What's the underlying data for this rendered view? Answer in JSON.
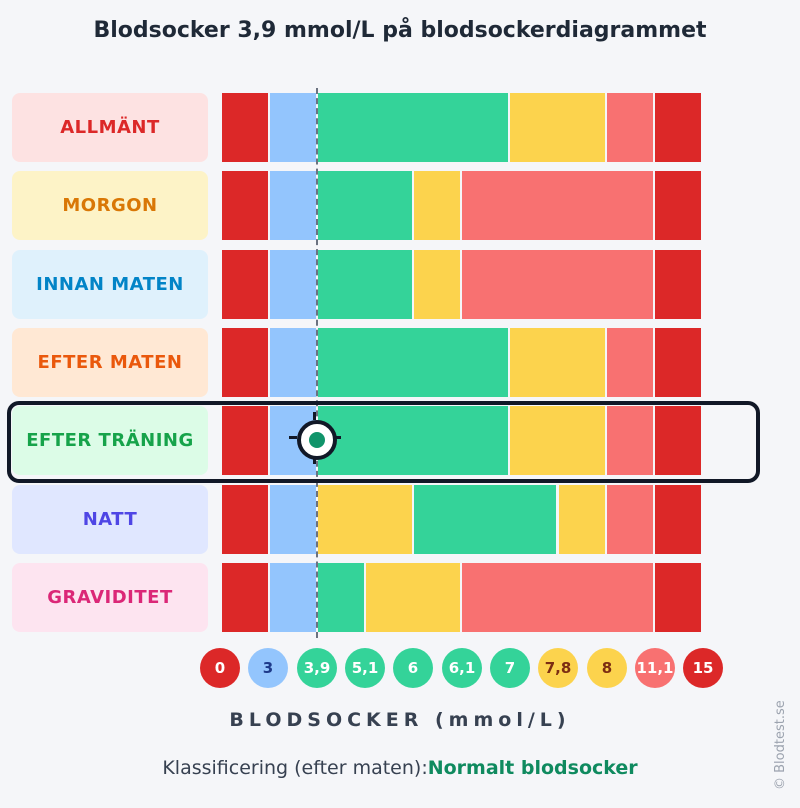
{
  "title": "Blodsocker 3,9 mmol/L på blodsockerdiagrammet",
  "colors": {
    "red": "#dc2828",
    "blue": "#93c5fd",
    "green": "#34d399",
    "yellow": "#fcd34d",
    "salmon": "#f87171",
    "marker": "#10946a"
  },
  "chart_data": {
    "type": "table",
    "xlabel": "BLODSOCKER (mmol/L)",
    "x_ticks": [
      "0",
      "3",
      "3,9",
      "5,1",
      "6",
      "6,1",
      "7",
      "7,8",
      "8",
      "11,1",
      "15"
    ],
    "x_tick_colors": [
      "red",
      "blue",
      "green",
      "green",
      "green",
      "green",
      "green",
      "yellow",
      "yellow",
      "salmon",
      "red"
    ],
    "marker_value": 3.9,
    "highlighted_row": "EFTER TRÄNING",
    "rows": [
      {
        "label": "ALLMÄNT",
        "label_color": "#dc2828",
        "label_bg": "#fde2e2",
        "bands": [
          "red",
          "blue",
          "green",
          "green",
          "green",
          "green",
          "yellow",
          "yellow",
          "salmon",
          "red"
        ]
      },
      {
        "label": "MORGON",
        "label_color": "#d97706",
        "label_bg": "#fdf3c7",
        "bands": [
          "red",
          "blue",
          "green",
          "green",
          "yellow",
          "salmon",
          "salmon",
          "salmon",
          "salmon",
          "red"
        ]
      },
      {
        "label": "INNAN MATEN",
        "label_color": "#0284c7",
        "label_bg": "#dff1fc",
        "bands": [
          "red",
          "blue",
          "green",
          "green",
          "yellow",
          "salmon",
          "salmon",
          "salmon",
          "salmon",
          "red"
        ]
      },
      {
        "label": "EFTER MATEN",
        "label_color": "#ea580c",
        "label_bg": "#ffe8d4",
        "bands": [
          "red",
          "blue",
          "green",
          "green",
          "green",
          "green",
          "yellow",
          "yellow",
          "salmon",
          "red"
        ]
      },
      {
        "label": "EFTER TRÄNING",
        "label_color": "#16a34a",
        "label_bg": "#dcfce7",
        "bands": [
          "red",
          "blue",
          "green",
          "green",
          "green",
          "green",
          "yellow",
          "yellow",
          "salmon",
          "red"
        ]
      },
      {
        "label": "NATT",
        "label_color": "#4f46e5",
        "label_bg": "#e0e7ff",
        "bands": [
          "red",
          "blue",
          "yellow",
          "yellow",
          "green",
          "green",
          "green",
          "yellow",
          "salmon",
          "red"
        ]
      },
      {
        "label": "GRAVIDITET",
        "label_color": "#db2777",
        "label_bg": "#fde4f0",
        "bands": [
          "red",
          "blue",
          "green",
          "yellow",
          "yellow",
          "salmon",
          "salmon",
          "salmon",
          "salmon",
          "red"
        ]
      }
    ]
  },
  "classification": {
    "prefix": "Klassificering (efter maten):",
    "result": "Normalt blodsocker"
  },
  "copyright": "© Blodtest.se"
}
